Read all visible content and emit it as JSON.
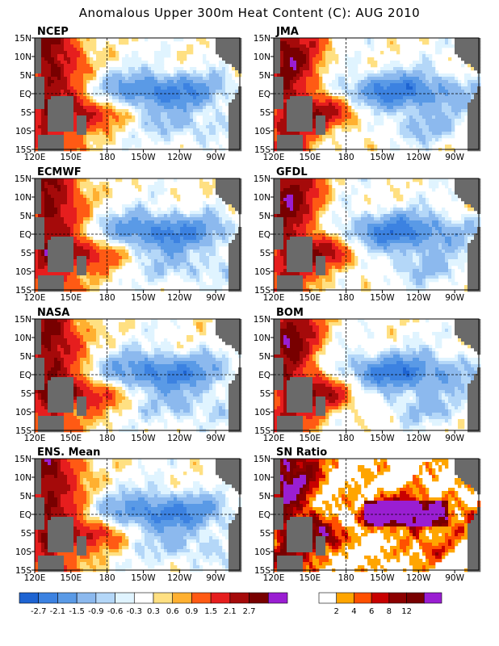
{
  "title": "Anomalous Upper 300m Heat Content (C): AUG 2010",
  "colors": {
    "ocean": "#ffffff",
    "land": "#6a6a6a",
    "grid": "#000000"
  },
  "chart_data": [
    {
      "type": "heatmap",
      "title": "NCEP",
      "x_ticks": [
        "120E",
        "150E",
        "180",
        "150W",
        "120W",
        "90W"
      ],
      "y_ticks": [
        "15N",
        "10N",
        "5N",
        "EQ",
        "5S",
        "10S",
        "15S"
      ]
    },
    {
      "type": "heatmap",
      "title": "JMA",
      "x_ticks": [
        "120E",
        "150E",
        "180",
        "150W",
        "120W",
        "90W"
      ],
      "y_ticks": [
        "15N",
        "10N",
        "5N",
        "EQ",
        "5S",
        "10S",
        "15S"
      ]
    },
    {
      "type": "heatmap",
      "title": "ECMWF",
      "x_ticks": [
        "120E",
        "150E",
        "180",
        "150W",
        "120W",
        "90W"
      ],
      "y_ticks": [
        "15N",
        "10N",
        "5N",
        "EQ",
        "5S",
        "10S",
        "15S"
      ]
    },
    {
      "type": "heatmap",
      "title": "GFDL",
      "x_ticks": [
        "120E",
        "150E",
        "180",
        "150W",
        "120W",
        "90W"
      ],
      "y_ticks": [
        "15N",
        "10N",
        "5N",
        "EQ",
        "5S",
        "10S",
        "15S"
      ]
    },
    {
      "type": "heatmap",
      "title": "NASA",
      "x_ticks": [
        "120E",
        "150E",
        "180",
        "150W",
        "120W",
        "90W"
      ],
      "y_ticks": [
        "15N",
        "10N",
        "5N",
        "EQ",
        "5S",
        "10S",
        "15S"
      ]
    },
    {
      "type": "heatmap",
      "title": "BOM",
      "x_ticks": [
        "120E",
        "150E",
        "180",
        "150W",
        "120W",
        "90W"
      ],
      "y_ticks": [
        "15N",
        "10N",
        "5N",
        "EQ",
        "5S",
        "10S",
        "15S"
      ]
    },
    {
      "type": "heatmap",
      "title": "ENS. Mean",
      "x_ticks": [
        "120E",
        "150E",
        "180",
        "150W",
        "120W",
        "90W"
      ],
      "y_ticks": [
        "15N",
        "10N",
        "5N",
        "EQ",
        "5S",
        "10S",
        "15S"
      ]
    },
    {
      "type": "heatmap",
      "title": "SN Ratio",
      "x_ticks": [
        "120E",
        "150E",
        "180",
        "150W",
        "120W",
        "90W"
      ],
      "y_ticks": [
        "15N",
        "10N",
        "5N",
        "EQ",
        "5S",
        "10S",
        "15S"
      ]
    }
  ],
  "colorbars": [
    {
      "labels": [
        "-2.7",
        "-2.1",
        "-1.5",
        "-0.9",
        "-0.6",
        "-0.3",
        "0.3",
        "0.6",
        "0.9",
        "1.5",
        "2.1",
        "2.7"
      ],
      "colors": [
        "#1e64d2",
        "#3c82e1",
        "#5a9ae6",
        "#8cb9ee",
        "#b4d7f8",
        "#e0f4ff",
        "#ffffff",
        "#ffe082",
        "#ffb030",
        "#ff5a14",
        "#e61e1e",
        "#a50a0a",
        "#780000",
        "#9a1ed2"
      ]
    },
    {
      "labels": [
        "2",
        "4",
        "6",
        "8",
        "12"
      ],
      "colors": [
        "#ffffff",
        "#ffa500",
        "#ff5000",
        "#c80000",
        "#8c0000",
        "#780000",
        "#9a1ed2"
      ]
    }
  ]
}
